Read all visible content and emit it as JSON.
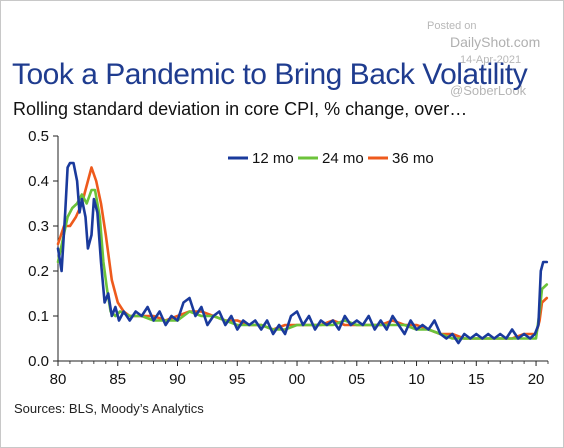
{
  "watermark": {
    "posted_label": "Posted on",
    "site": "DailyShot.com",
    "date": "14-Apr-2021",
    "handle": "@SoberLook"
  },
  "title": "Took a Pandemic to Bring Back Volatility",
  "subtitle": "Rolling standard deviation in core CPI, % change, over…",
  "source": "Sources: BLS, Moody’s Analytics",
  "colors": {
    "series_12": "#1a3a9c",
    "series_24": "#6cc33a",
    "series_36": "#ee5a1c",
    "title": "#1f3c8f",
    "axis": "#222222"
  },
  "chart_data": {
    "type": "line",
    "xlabel": "",
    "ylabel": "",
    "xlim": [
      1980,
      2021
    ],
    "ylim": [
      0,
      0.5
    ],
    "x_ticks": [
      1980,
      1985,
      1990,
      1995,
      2000,
      2005,
      2010,
      2015,
      2020
    ],
    "x_tick_labels": [
      "80",
      "85",
      "90",
      "95",
      "00",
      "05",
      "10",
      "15",
      "20"
    ],
    "y_ticks": [
      0,
      0.1,
      0.2,
      0.3,
      0.4,
      0.5
    ],
    "y_tick_labels": [
      "0.0",
      "0.1",
      "0.2",
      "0.3",
      "0.4",
      "0.5"
    ],
    "grid": false,
    "legend_position": "top-right",
    "series": [
      {
        "name": "12 mo",
        "color": "#1a3a9c",
        "points": [
          [
            1980.0,
            0.25
          ],
          [
            1980.3,
            0.2
          ],
          [
            1980.6,
            0.33
          ],
          [
            1980.8,
            0.43
          ],
          [
            1981.0,
            0.44
          ],
          [
            1981.3,
            0.44
          ],
          [
            1981.6,
            0.4
          ],
          [
            1981.8,
            0.33
          ],
          [
            1982.0,
            0.36
          ],
          [
            1982.3,
            0.32
          ],
          [
            1982.5,
            0.25
          ],
          [
            1982.8,
            0.28
          ],
          [
            1983.0,
            0.36
          ],
          [
            1983.3,
            0.33
          ],
          [
            1983.6,
            0.22
          ],
          [
            1983.9,
            0.13
          ],
          [
            1984.2,
            0.15
          ],
          [
            1984.5,
            0.1
          ],
          [
            1984.8,
            0.12
          ],
          [
            1985.1,
            0.09
          ],
          [
            1985.5,
            0.11
          ],
          [
            1986.0,
            0.09
          ],
          [
            1986.5,
            0.11
          ],
          [
            1987.0,
            0.1
          ],
          [
            1987.5,
            0.12
          ],
          [
            1988.0,
            0.09
          ],
          [
            1988.5,
            0.11
          ],
          [
            1989.0,
            0.08
          ],
          [
            1989.5,
            0.1
          ],
          [
            1990.0,
            0.09
          ],
          [
            1990.5,
            0.13
          ],
          [
            1991.0,
            0.14
          ],
          [
            1991.5,
            0.1
          ],
          [
            1992.0,
            0.12
          ],
          [
            1992.5,
            0.08
          ],
          [
            1993.0,
            0.1
          ],
          [
            1993.5,
            0.11
          ],
          [
            1994.0,
            0.08
          ],
          [
            1994.5,
            0.1
          ],
          [
            1995.0,
            0.07
          ],
          [
            1995.5,
            0.09
          ],
          [
            1996.0,
            0.08
          ],
          [
            1996.5,
            0.09
          ],
          [
            1997.0,
            0.07
          ],
          [
            1997.5,
            0.09
          ],
          [
            1998.0,
            0.06
          ],
          [
            1998.5,
            0.08
          ],
          [
            1999.0,
            0.06
          ],
          [
            1999.5,
            0.1
          ],
          [
            2000.0,
            0.11
          ],
          [
            2000.5,
            0.08
          ],
          [
            2001.0,
            0.1
          ],
          [
            2001.5,
            0.07
          ],
          [
            2002.0,
            0.09
          ],
          [
            2002.5,
            0.08
          ],
          [
            2003.0,
            0.09
          ],
          [
            2003.5,
            0.07
          ],
          [
            2004.0,
            0.1
          ],
          [
            2004.5,
            0.08
          ],
          [
            2005.0,
            0.09
          ],
          [
            2005.5,
            0.08
          ],
          [
            2006.0,
            0.1
          ],
          [
            2006.5,
            0.07
          ],
          [
            2007.0,
            0.09
          ],
          [
            2007.5,
            0.07
          ],
          [
            2008.0,
            0.1
          ],
          [
            2008.5,
            0.08
          ],
          [
            2009.0,
            0.06
          ],
          [
            2009.5,
            0.09
          ],
          [
            2010.0,
            0.07
          ],
          [
            2010.5,
            0.08
          ],
          [
            2011.0,
            0.07
          ],
          [
            2011.5,
            0.09
          ],
          [
            2012.0,
            0.06
          ],
          [
            2012.5,
            0.05
          ],
          [
            2013.0,
            0.06
          ],
          [
            2013.5,
            0.04
          ],
          [
            2014.0,
            0.06
          ],
          [
            2014.5,
            0.05
          ],
          [
            2015.0,
            0.06
          ],
          [
            2015.5,
            0.05
          ],
          [
            2016.0,
            0.06
          ],
          [
            2016.5,
            0.05
          ],
          [
            2017.0,
            0.06
          ],
          [
            2017.5,
            0.05
          ],
          [
            2018.0,
            0.07
          ],
          [
            2018.5,
            0.05
          ],
          [
            2019.0,
            0.06
          ],
          [
            2019.5,
            0.05
          ],
          [
            2019.9,
            0.06
          ],
          [
            2020.2,
            0.08
          ],
          [
            2020.4,
            0.2
          ],
          [
            2020.6,
            0.22
          ],
          [
            2020.9,
            0.22
          ]
        ]
      },
      {
        "name": "24 mo",
        "color": "#6cc33a",
        "points": [
          [
            1980.0,
            0.22
          ],
          [
            1980.4,
            0.27
          ],
          [
            1980.8,
            0.32
          ],
          [
            1981.2,
            0.34
          ],
          [
            1981.6,
            0.35
          ],
          [
            1982.0,
            0.37
          ],
          [
            1982.4,
            0.35
          ],
          [
            1982.8,
            0.38
          ],
          [
            1983.1,
            0.38
          ],
          [
            1983.5,
            0.32
          ],
          [
            1983.8,
            0.22
          ],
          [
            1984.1,
            0.16
          ],
          [
            1984.4,
            0.11
          ],
          [
            1984.8,
            0.1
          ],
          [
            1985.2,
            0.11
          ],
          [
            1986.0,
            0.1
          ],
          [
            1987.0,
            0.1
          ],
          [
            1988.0,
            0.09
          ],
          [
            1989.0,
            0.09
          ],
          [
            1990.0,
            0.09
          ],
          [
            1991.0,
            0.11
          ],
          [
            1992.0,
            0.1
          ],
          [
            1993.0,
            0.1
          ],
          [
            1994.0,
            0.09
          ],
          [
            1995.0,
            0.08
          ],
          [
            1996.0,
            0.08
          ],
          [
            1997.0,
            0.08
          ],
          [
            1998.0,
            0.07
          ],
          [
            1999.0,
            0.07
          ],
          [
            2000.0,
            0.08
          ],
          [
            2001.0,
            0.08
          ],
          [
            2002.0,
            0.08
          ],
          [
            2003.0,
            0.08
          ],
          [
            2004.0,
            0.09
          ],
          [
            2005.0,
            0.08
          ],
          [
            2006.0,
            0.08
          ],
          [
            2007.0,
            0.08
          ],
          [
            2008.0,
            0.08
          ],
          [
            2009.0,
            0.08
          ],
          [
            2010.0,
            0.07
          ],
          [
            2011.0,
            0.07
          ],
          [
            2012.0,
            0.06
          ],
          [
            2013.0,
            0.05
          ],
          [
            2014.0,
            0.05
          ],
          [
            2015.0,
            0.05
          ],
          [
            2016.0,
            0.05
          ],
          [
            2017.0,
            0.05
          ],
          [
            2018.0,
            0.05
          ],
          [
            2019.0,
            0.05
          ],
          [
            2020.0,
            0.05
          ],
          [
            2020.3,
            0.11
          ],
          [
            2020.5,
            0.16
          ],
          [
            2020.9,
            0.17
          ]
        ]
      },
      {
        "name": "36 mo",
        "color": "#ee5a1c",
        "points": [
          [
            1980.0,
            0.26
          ],
          [
            1980.5,
            0.3
          ],
          [
            1981.0,
            0.3
          ],
          [
            1981.5,
            0.32
          ],
          [
            1982.0,
            0.35
          ],
          [
            1982.5,
            0.4
          ],
          [
            1982.8,
            0.43
          ],
          [
            1983.2,
            0.4
          ],
          [
            1983.6,
            0.35
          ],
          [
            1984.0,
            0.28
          ],
          [
            1984.5,
            0.18
          ],
          [
            1985.0,
            0.13
          ],
          [
            1985.5,
            0.11
          ],
          [
            1986.0,
            0.1
          ],
          [
            1987.0,
            0.1
          ],
          [
            1988.0,
            0.1
          ],
          [
            1989.0,
            0.09
          ],
          [
            1990.0,
            0.1
          ],
          [
            1991.0,
            0.11
          ],
          [
            1992.0,
            0.11
          ],
          [
            1993.0,
            0.1
          ],
          [
            1994.0,
            0.09
          ],
          [
            1995.0,
            0.09
          ],
          [
            1996.0,
            0.08
          ],
          [
            1997.0,
            0.08
          ],
          [
            1998.0,
            0.07
          ],
          [
            1999.0,
            0.08
          ],
          [
            2000.0,
            0.08
          ],
          [
            2001.0,
            0.08
          ],
          [
            2002.0,
            0.08
          ],
          [
            2003.0,
            0.09
          ],
          [
            2004.0,
            0.08
          ],
          [
            2005.0,
            0.08
          ],
          [
            2006.0,
            0.08
          ],
          [
            2007.0,
            0.08
          ],
          [
            2008.0,
            0.09
          ],
          [
            2009.0,
            0.08
          ],
          [
            2010.0,
            0.08
          ],
          [
            2011.0,
            0.07
          ],
          [
            2012.0,
            0.06
          ],
          [
            2013.0,
            0.06
          ],
          [
            2014.0,
            0.05
          ],
          [
            2015.0,
            0.05
          ],
          [
            2016.0,
            0.05
          ],
          [
            2017.0,
            0.05
          ],
          [
            2018.0,
            0.05
          ],
          [
            2019.0,
            0.06
          ],
          [
            2020.0,
            0.06
          ],
          [
            2020.3,
            0.09
          ],
          [
            2020.5,
            0.13
          ],
          [
            2020.9,
            0.14
          ]
        ]
      }
    ]
  }
}
